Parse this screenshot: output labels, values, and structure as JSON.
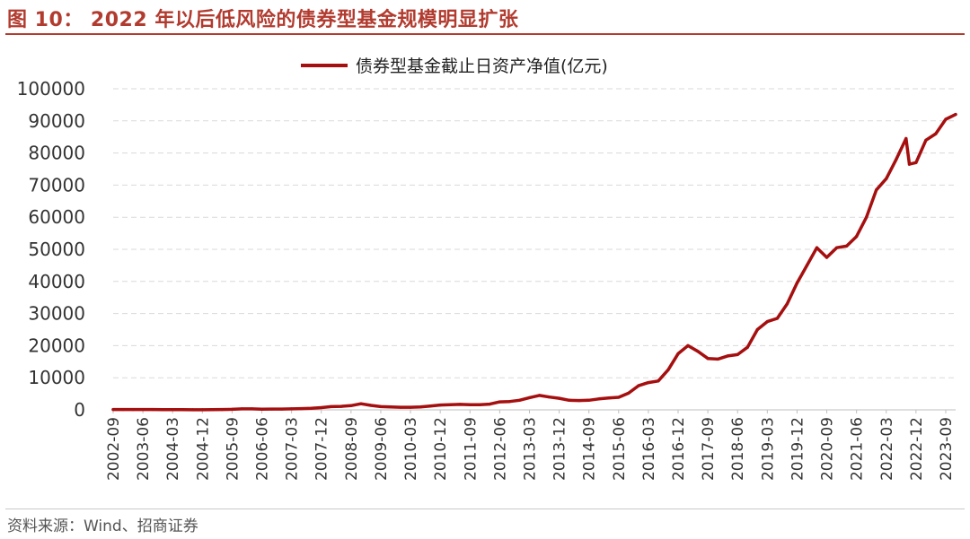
{
  "figure": {
    "title": "图 10： 2022 年以后低风险的债券型基金规模明显扩张",
    "source": "资料来源：Wind、招商证券"
  },
  "colors": {
    "accent": "#b23b2f",
    "series": "#a50f0f",
    "grid": "#d9d9d9",
    "axis_text": "#333333"
  },
  "chart_data": {
    "type": "line",
    "title": "",
    "xlabel": "",
    "ylabel": "",
    "ylim": [
      0,
      100000
    ],
    "yticks": [
      0,
      10000,
      20000,
      30000,
      40000,
      50000,
      60000,
      70000,
      80000,
      90000,
      100000
    ],
    "grid": true,
    "legend_position": "top-center",
    "x_start": "2002-09",
    "x_end": "2023-12",
    "x_tick_labels": [
      "2002-09",
      "2003-06",
      "2004-03",
      "2004-12",
      "2005-09",
      "2006-06",
      "2007-03",
      "2007-12",
      "2008-09",
      "2009-06",
      "2010-03",
      "2010-12",
      "2011-09",
      "2012-06",
      "2013-03",
      "2013-12",
      "2014-09",
      "2015-06",
      "2016-03",
      "2016-12",
      "2017-09",
      "2018-06",
      "2019-03",
      "2019-12",
      "2020-09",
      "2021-06",
      "2022-03",
      "2022-12",
      "2023-09"
    ],
    "series": [
      {
        "name": "债券型基金截止日资产净值(亿元)",
        "color": "#a50f0f",
        "points": [
          [
            "2002-09",
            100
          ],
          [
            "2002-12",
            120
          ],
          [
            "2003-03",
            100
          ],
          [
            "2003-06",
            110
          ],
          [
            "2003-09",
            120
          ],
          [
            "2003-12",
            90
          ],
          [
            "2004-03",
            80
          ],
          [
            "2004-06",
            50
          ],
          [
            "2004-09",
            40
          ],
          [
            "2004-12",
            40
          ],
          [
            "2005-03",
            60
          ],
          [
            "2005-06",
            100
          ],
          [
            "2005-09",
            180
          ],
          [
            "2005-12",
            300
          ],
          [
            "2006-03",
            300
          ],
          [
            "2006-06",
            200
          ],
          [
            "2006-09",
            250
          ],
          [
            "2006-12",
            250
          ],
          [
            "2007-03",
            300
          ],
          [
            "2007-06",
            400
          ],
          [
            "2007-09",
            500
          ],
          [
            "2007-12",
            700
          ],
          [
            "2008-03",
            1000
          ],
          [
            "2008-06",
            1100
          ],
          [
            "2008-09",
            1300
          ],
          [
            "2008-12",
            1900
          ],
          [
            "2009-03",
            1400
          ],
          [
            "2009-06",
            1000
          ],
          [
            "2009-09",
            900
          ],
          [
            "2009-12",
            800
          ],
          [
            "2010-03",
            800
          ],
          [
            "2010-06",
            900
          ],
          [
            "2010-09",
            1200
          ],
          [
            "2010-12",
            1500
          ],
          [
            "2011-03",
            1600
          ],
          [
            "2011-06",
            1700
          ],
          [
            "2011-09",
            1600
          ],
          [
            "2011-12",
            1600
          ],
          [
            "2012-03",
            1800
          ],
          [
            "2012-06",
            2500
          ],
          [
            "2012-09",
            2600
          ],
          [
            "2012-12",
            3000
          ],
          [
            "2013-03",
            3800
          ],
          [
            "2013-06",
            4500
          ],
          [
            "2013-09",
            4000
          ],
          [
            "2013-12",
            3600
          ],
          [
            "2014-03",
            3000
          ],
          [
            "2014-06",
            2900
          ],
          [
            "2014-09",
            3000
          ],
          [
            "2014-12",
            3400
          ],
          [
            "2015-03",
            3700
          ],
          [
            "2015-06",
            3900
          ],
          [
            "2015-09",
            5200
          ],
          [
            "2015-12",
            7500
          ],
          [
            "2016-03",
            8500
          ],
          [
            "2016-06",
            9000
          ],
          [
            "2016-09",
            12500
          ],
          [
            "2016-12",
            17500
          ],
          [
            "2017-03",
            20000
          ],
          [
            "2017-06",
            18200
          ],
          [
            "2017-09",
            16000
          ],
          [
            "2017-12",
            15800
          ],
          [
            "2018-03",
            16800
          ],
          [
            "2018-06",
            17200
          ],
          [
            "2018-09",
            19500
          ],
          [
            "2018-12",
            25000
          ],
          [
            "2019-03",
            27500
          ],
          [
            "2019-06",
            28500
          ],
          [
            "2019-09",
            33000
          ],
          [
            "2019-12",
            39500
          ],
          [
            "2020-03",
            45000
          ],
          [
            "2020-06",
            50500
          ],
          [
            "2020-09",
            47500
          ],
          [
            "2020-12",
            50500
          ],
          [
            "2021-03",
            51000
          ],
          [
            "2021-06",
            54000
          ],
          [
            "2021-09",
            60000
          ],
          [
            "2021-12",
            68500
          ],
          [
            "2022-03",
            72000
          ],
          [
            "2022-06",
            78000
          ],
          [
            "2022-09",
            84500
          ],
          [
            "2022-10",
            76500
          ],
          [
            "2022-12",
            77000
          ],
          [
            "2023-03",
            84000
          ],
          [
            "2023-06",
            86000
          ],
          [
            "2023-09",
            90500
          ],
          [
            "2023-12",
            92000
          ]
        ]
      }
    ]
  }
}
